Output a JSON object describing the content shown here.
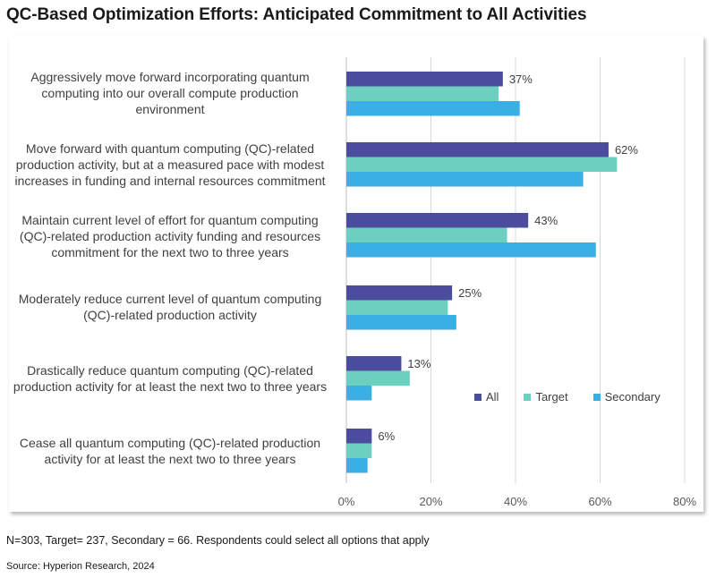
{
  "title": "QC-Based Optimization Efforts: Anticipated Commitment to All Activities",
  "footnote": "N=303, Target= 237, Secondary = 66.  Respondents could select all options that apply",
  "source": "Source: Hyperion Research, 2024",
  "chart_data": {
    "type": "bar",
    "orientation": "horizontal",
    "categories": [
      "Aggressively move forward incorporating quantum computing into our overall compute production environment",
      "Move forward with quantum computing (QC)-related production activity, but at a measured pace with modest increases in funding and internal resources commitment",
      "Maintain current level of effort for quantum computing (QC)-related production activity funding and resources commitment for the next two to three years",
      "Moderately reduce current level of quantum computing (QC)-related production activity",
      "Drastically reduce quantum computing (QC)-related production activity for at least the next two to three years",
      "Cease all quantum computing (QC)-related production activity for at least the next two to three years"
    ],
    "series": [
      {
        "name": "All",
        "color": "#4B4C9E",
        "values": [
          37,
          62,
          43,
          25,
          13,
          6
        ]
      },
      {
        "name": "Target",
        "color": "#6CCFC0",
        "values": [
          36,
          64,
          38,
          24,
          15,
          6
        ]
      },
      {
        "name": "Secondary",
        "color": "#3AAFE3",
        "values": [
          41,
          56,
          59,
          26,
          6,
          5
        ]
      }
    ],
    "data_labels": [
      "37%",
      "62%",
      "43%",
      "25%",
      "13%",
      "6%"
    ],
    "x_ticks": [
      "0%",
      "20%",
      "40%",
      "60%",
      "80%"
    ],
    "xlim": [
      0,
      80
    ],
    "grid": true,
    "legend_position": "lower-right",
    "title": "QC-Based Optimization Efforts: Anticipated Commitment to All Activities"
  }
}
